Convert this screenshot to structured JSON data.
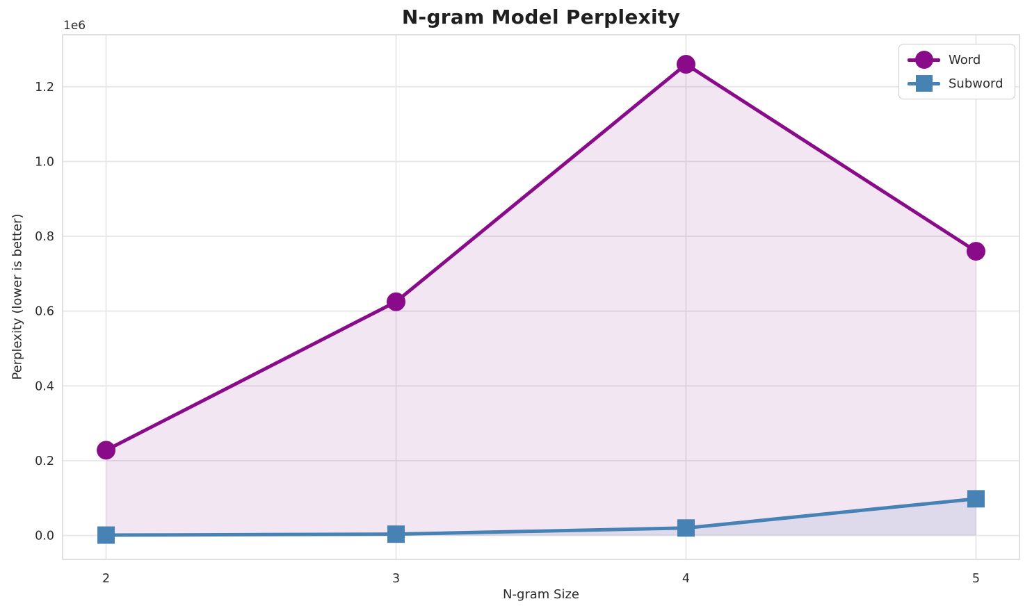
{
  "chart_data": {
    "type": "line",
    "title": "N-gram Model Perplexity",
    "xlabel": "N-gram Size",
    "ylabel": "Perplexity (lower is better)",
    "y_offset_text": "1e6",
    "x": [
      2,
      3,
      4,
      5
    ],
    "x_tick_labels": [
      "2",
      "3",
      "4",
      "5"
    ],
    "y_ticks": [
      0,
      200000,
      400000,
      600000,
      800000,
      1000000,
      1200000
    ],
    "y_tick_labels": [
      "0.0",
      "0.2",
      "0.4",
      "0.6",
      "0.8",
      "1.0",
      "1.2"
    ],
    "xlim": [
      1.85,
      5.15
    ],
    "ylim": [
      -64000,
      1339000
    ],
    "grid": true,
    "legend_position": "upper right",
    "fill_baseline": 0,
    "grid_color": "#e7e7e7",
    "spine_color": "#d9d9d9",
    "tick_label_color": "#2b2b2b",
    "series": [
      {
        "name": "Word",
        "marker": "circle",
        "color": "#8a0b8a",
        "fill_opacity": 0.1,
        "values": [
          228000,
          625000,
          1260000,
          760000
        ]
      },
      {
        "name": "Subword",
        "marker": "square",
        "color": "#4682b4",
        "fill_opacity": 0.12,
        "values": [
          1000,
          3500,
          20000,
          98000
        ]
      }
    ]
  }
}
